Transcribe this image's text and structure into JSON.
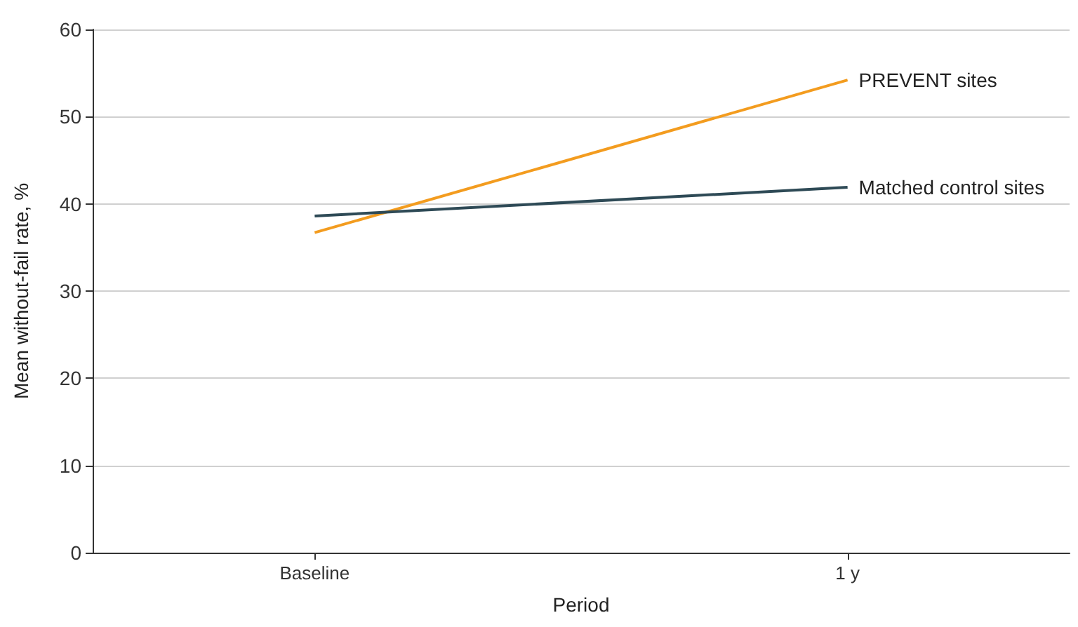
{
  "chart_data": {
    "type": "line",
    "xlabel": "Period",
    "ylabel": "Mean without-fail rate, %",
    "categories": [
      "Baseline",
      "1 y"
    ],
    "series": [
      {
        "name": "PREVENT sites",
        "color": "#f39c1f",
        "values": [
          36.7,
          54.2
        ]
      },
      {
        "name": "Matched control sites",
        "color": "#2e4a56",
        "values": [
          38.6,
          41.9
        ]
      }
    ],
    "ylim": [
      0,
      60
    ],
    "yticks": [
      0,
      10,
      20,
      30,
      40,
      50,
      60
    ],
    "grid": "y",
    "legend": false,
    "marker": "none",
    "line_style": "solid"
  }
}
